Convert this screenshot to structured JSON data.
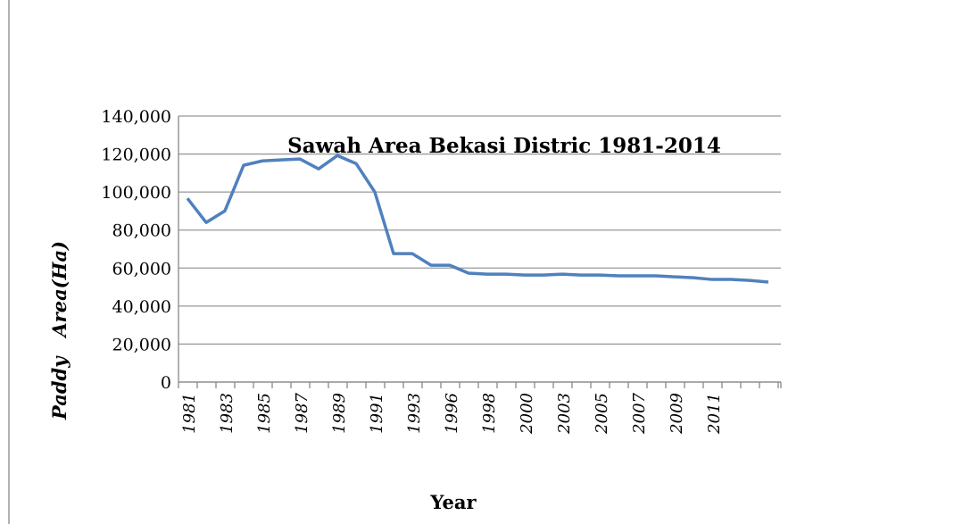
{
  "chart_data": {
    "type": "line",
    "title": "Sawah Area Bekasi Distric 1981-2014",
    "x_label": "Year",
    "y_label": "Paddy   Area(Ha)",
    "categories": [
      "1981",
      null,
      "1983",
      null,
      "1985",
      null,
      "1987",
      null,
      "1989",
      null,
      "1991",
      null,
      "1993",
      null,
      "1996",
      null,
      "1998",
      null,
      "2000",
      null,
      "2003",
      null,
      "2005",
      null,
      "2007",
      null,
      "2009",
      null,
      "2011",
      null,
      null,
      null
    ],
    "series": [
      {
        "name": "Paddy Area",
        "color": "#4f81bd",
        "values": [
          96700,
          84000,
          90100,
          114100,
          116400,
          116900,
          117400,
          112200,
          119200,
          115000,
          100000,
          67600,
          67600,
          61500,
          61500,
          57300,
          56800,
          56800,
          56300,
          56300,
          56800,
          56300,
          56300,
          55900,
          55900,
          55900,
          55400,
          54900,
          54000,
          54000,
          53500,
          52600
        ]
      }
    ],
    "ylim": [
      0,
      140000
    ],
    "yticks": [
      0,
      {
        "value": 20000,
        "label": "20,000"
      },
      {
        "value": 40000,
        "label": "40,000"
      },
      {
        "value": 60000,
        "label": "60,000"
      },
      {
        "value": 80000,
        "label": "80,000"
      },
      {
        "value": 100000,
        "label": "100,000"
      },
      {
        "value": 120000,
        "label": "120,000"
      },
      {
        "value": 140000,
        "label": "140,000"
      }
    ],
    "grid": true
  }
}
